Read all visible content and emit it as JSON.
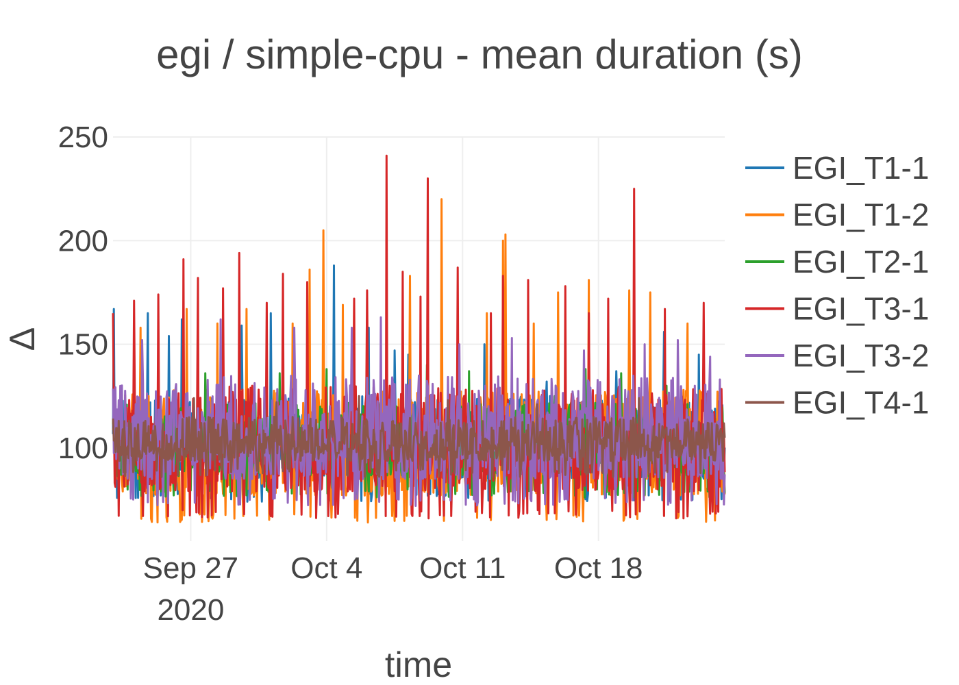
{
  "chart_data": {
    "type": "line",
    "title": "egi / simple-cpu - mean duration (s)",
    "xlabel": "time",
    "ylabel": "Δ",
    "x_range": [
      "2020-09-23T00:00:00",
      "2020-10-24T12:00:00"
    ],
    "ylim": [
      55,
      250
    ],
    "y_ticks": [
      100,
      150,
      200,
      250
    ],
    "x_ticks": [
      {
        "date": "2020-09-27",
        "label": "Sep 27",
        "sublabel": "2020"
      },
      {
        "date": "2020-10-04",
        "label": "Oct 4",
        "sublabel": ""
      },
      {
        "date": "2020-10-11",
        "label": "Oct 11",
        "sublabel": ""
      },
      {
        "date": "2020-10-18",
        "label": "Oct 18",
        "sublabel": ""
      }
    ],
    "grid": true,
    "legend_position": "right",
    "samples_per_day": 24,
    "series": [
      {
        "name": "EGI_T1-1",
        "color": "#1f77b4",
        "low": 78,
        "high": 125,
        "peaks": [
          [
            "2020-09-23T01:00:00",
            167
          ],
          [
            "2020-09-24T11:00:00",
            151
          ],
          [
            "2020-09-24T19:00:00",
            165
          ],
          [
            "2020-09-25T21:00:00",
            154
          ],
          [
            "2020-09-26T13:00:00",
            162
          ],
          [
            "2020-09-28T09:00:00",
            147
          ],
          [
            "2020-09-29T15:00:00",
            159
          ],
          [
            "2020-10-01T03:00:00",
            165
          ],
          [
            "2020-10-04T09:00:00",
            188
          ],
          [
            "2020-10-06T04:00:00",
            158
          ],
          [
            "2020-10-07T12:00:00",
            147
          ],
          [
            "2020-10-08T05:00:00",
            145
          ],
          [
            "2020-10-12T03:00:00",
            150
          ],
          [
            "2020-10-15T08:00:00",
            132
          ],
          [
            "2020-10-18T22:00:00",
            137
          ],
          [
            "2020-10-19T14:00:00",
            140
          ],
          [
            "2020-10-21T09:00:00",
            156
          ],
          [
            "2020-10-23T04:00:00",
            145
          ]
        ]
      },
      {
        "name": "EGI_T1-2",
        "color": "#ff7f0e",
        "low": 68,
        "high": 128,
        "peaks": [
          [
            "2020-09-24T10:00:00",
            158
          ],
          [
            "2020-09-26T19:00:00",
            167
          ],
          [
            "2020-09-28T09:00:00",
            160
          ],
          [
            "2020-09-29T21:00:00",
            167
          ],
          [
            "2020-10-02T06:00:00",
            160
          ],
          [
            "2020-10-03T20:00:00",
            205
          ],
          [
            "2020-10-03T03:00:00",
            186
          ],
          [
            "2020-10-04T20:00:00",
            169
          ],
          [
            "2020-10-05T10:00:00",
            171
          ],
          [
            "2020-10-08T07:00:00",
            183
          ],
          [
            "2020-10-09T22:00:00",
            220
          ],
          [
            "2020-10-12T06:00:00",
            165
          ],
          [
            "2020-10-13T02:00:00",
            200
          ],
          [
            "2020-10-13T05:00:00",
            203
          ],
          [
            "2020-10-14T16:00:00",
            160
          ],
          [
            "2020-10-15T22:00:00",
            175
          ],
          [
            "2020-10-17T12:00:00",
            181
          ],
          [
            "2020-10-19T14:00:00",
            176
          ],
          [
            "2020-10-20T16:00:00",
            175
          ],
          [
            "2020-10-22T14:00:00",
            160
          ]
        ]
      },
      {
        "name": "EGI_T2-1",
        "color": "#2ca02c",
        "low": 80,
        "high": 122,
        "peaks": [
          [
            "2020-09-27T18:00:00",
            136
          ],
          [
            "2020-09-29T02:00:00",
            131
          ],
          [
            "2020-10-01T14:00:00",
            136
          ],
          [
            "2020-10-04T00:00:00",
            138
          ],
          [
            "2020-10-09T04:00:00",
            140
          ],
          [
            "2020-10-11T08:00:00",
            137
          ],
          [
            "2020-10-15T18:00:00",
            125
          ],
          [
            "2020-10-17T08:00:00",
            138
          ],
          [
            "2020-10-19T04:00:00",
            136
          ],
          [
            "2020-10-21T12:00:00",
            130
          ]
        ]
      },
      {
        "name": "EGI_T3-1",
        "color": "#d62728",
        "low": 70,
        "high": 130,
        "peaks": [
          [
            "2020-09-23T00:00:00",
            165
          ],
          [
            "2020-09-24T02:00:00",
            171
          ],
          [
            "2020-09-25T08:00:00",
            174
          ],
          [
            "2020-09-26T15:00:00",
            191
          ],
          [
            "2020-09-27T09:00:00",
            182
          ],
          [
            "2020-09-28T16:00:00",
            177
          ],
          [
            "2020-09-29T12:00:00",
            194
          ],
          [
            "2020-09-30T22:00:00",
            170
          ],
          [
            "2020-10-01T18:00:00",
            184
          ],
          [
            "2020-10-03T00:00:00",
            180
          ],
          [
            "2020-10-05T10:00:00",
            172
          ],
          [
            "2020-10-06T02:00:00",
            176
          ],
          [
            "2020-10-07T02:00:00",
            241
          ],
          [
            "2020-10-07T22:00:00",
            185
          ],
          [
            "2020-10-08T20:00:00",
            173
          ],
          [
            "2020-10-09T05:00:00",
            230
          ],
          [
            "2020-10-10T18:00:00",
            187
          ],
          [
            "2020-10-12T11:00:00",
            165
          ],
          [
            "2020-10-13T02:00:00",
            183
          ],
          [
            "2020-10-14T09:00:00",
            181
          ],
          [
            "2020-10-16T07:00:00",
            178
          ],
          [
            "2020-10-17T12:00:00",
            165
          ],
          [
            "2020-10-18T12:00:00",
            172
          ],
          [
            "2020-10-19T20:00:00",
            225
          ],
          [
            "2020-10-21T10:00:00",
            167
          ],
          [
            "2020-10-23T10:00:00",
            170
          ]
        ]
      },
      {
        "name": "EGI_T3-2",
        "color": "#9467bd",
        "low": 76,
        "high": 135,
        "peaks": [
          [
            "2020-09-24T12:00:00",
            152
          ],
          [
            "2020-09-28T13:00:00",
            162
          ],
          [
            "2020-10-02T08:00:00",
            158
          ],
          [
            "2020-10-05T07:00:00",
            158
          ],
          [
            "2020-10-06T19:00:00",
            163
          ],
          [
            "2020-10-10T20:00:00",
            150
          ],
          [
            "2020-10-13T13:00:00",
            153
          ],
          [
            "2020-10-17T06:00:00",
            147
          ],
          [
            "2020-10-20T09:00:00",
            150
          ],
          [
            "2020-10-22T02:00:00",
            152
          ],
          [
            "2020-10-23T18:00:00",
            144
          ]
        ]
      },
      {
        "name": "EGI_T4-1",
        "color": "#8c564b",
        "low": 90,
        "high": 115,
        "peaks": [
          [
            "2020-09-27T04:00:00",
            124
          ],
          [
            "2020-10-01T10:00:00",
            122
          ],
          [
            "2020-10-05T16:00:00",
            125
          ],
          [
            "2020-10-10T06:00:00",
            123
          ],
          [
            "2020-10-14T20:00:00",
            121
          ],
          [
            "2020-10-20T02:00:00",
            124
          ]
        ]
      }
    ]
  }
}
